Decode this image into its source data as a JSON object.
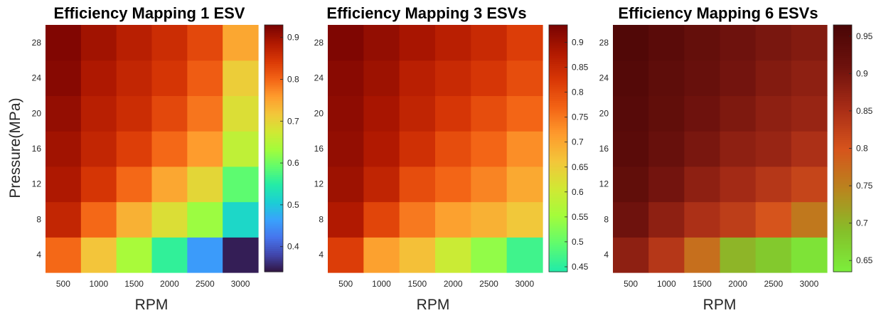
{
  "chart_data": [
    {
      "type": "heatmap",
      "title": "Efficiency Mapping 1 ESV",
      "xlabel": "RPM",
      "ylabel": "Pressure(MPa)",
      "x": [
        500,
        1000,
        1500,
        2000,
        2500,
        3000
      ],
      "y_ticks": [
        4,
        8,
        12,
        16,
        20,
        24,
        28
      ],
      "rows": [
        "4",
        "8",
        "12",
        "16",
        "20",
        "24",
        "28"
      ],
      "values": [
        [
          0.8,
          0.72,
          0.64,
          0.56,
          0.46,
          0.35
        ],
        [
          0.87,
          0.8,
          0.74,
          0.69,
          0.63,
          0.52
        ],
        [
          0.89,
          0.85,
          0.8,
          0.75,
          0.7,
          0.59
        ],
        [
          0.9,
          0.87,
          0.84,
          0.8,
          0.76,
          0.66
        ],
        [
          0.91,
          0.88,
          0.86,
          0.83,
          0.79,
          0.69
        ],
        [
          0.92,
          0.89,
          0.87,
          0.85,
          0.81,
          0.71
        ],
        [
          0.925,
          0.9,
          0.88,
          0.86,
          0.83,
          0.75
        ]
      ],
      "colorbar": {
        "min": 0.34,
        "max": 0.93,
        "ticks": [
          0.4,
          0.5,
          0.6,
          0.7,
          0.8,
          0.9
        ],
        "tick_labels": [
          "0.4",
          "0.5",
          "0.6",
          "0.7",
          "0.8",
          "0.9"
        ]
      }
    },
    {
      "type": "heatmap",
      "title": "Efficiency Mapping 3 ESVs",
      "xlabel": "RPM",
      "ylabel": "",
      "x": [
        500,
        1000,
        1500,
        2000,
        2500,
        3000
      ],
      "y_ticks": [
        4,
        8,
        12,
        16,
        20,
        24,
        28
      ],
      "rows": [
        "4",
        "8",
        "12",
        "16",
        "20",
        "24",
        "28"
      ],
      "values": [
        [
          0.82,
          0.71,
          0.67,
          0.6,
          0.54,
          0.47
        ],
        [
          0.88,
          0.81,
          0.75,
          0.71,
          0.69,
          0.66
        ],
        [
          0.9,
          0.86,
          0.8,
          0.77,
          0.74,
          0.7
        ],
        [
          0.91,
          0.88,
          0.84,
          0.8,
          0.77,
          0.73
        ],
        [
          0.915,
          0.89,
          0.86,
          0.83,
          0.8,
          0.77
        ],
        [
          0.92,
          0.9,
          0.87,
          0.85,
          0.83,
          0.8
        ],
        [
          0.93,
          0.91,
          0.89,
          0.87,
          0.85,
          0.82
        ]
      ],
      "colorbar": {
        "min": 0.44,
        "max": 0.935,
        "ticks": [
          0.45,
          0.5,
          0.55,
          0.6,
          0.65,
          0.7,
          0.75,
          0.8,
          0.85,
          0.9
        ],
        "tick_labels": [
          "0.45",
          "0.5",
          "0.55",
          "0.6",
          "0.65",
          "0.7",
          "0.75",
          "0.8",
          "0.85",
          "0.9"
        ]
      }
    },
    {
      "type": "heatmap",
      "title": "Efficiency Mapping 6 ESVs",
      "xlabel": "RPM",
      "ylabel": "",
      "x": [
        500,
        1000,
        1500,
        2000,
        2500,
        3000
      ],
      "y_ticks": [
        4,
        8,
        12,
        16,
        20,
        24,
        28
      ],
      "rows": [
        "4",
        "8",
        "12",
        "16",
        "20",
        "24",
        "28"
      ],
      "values": [
        [
          0.88,
          0.84,
          0.77,
          0.7,
          0.68,
          0.65
        ],
        [
          0.91,
          0.88,
          0.85,
          0.83,
          0.8,
          0.76
        ],
        [
          0.93,
          0.905,
          0.88,
          0.86,
          0.84,
          0.82
        ],
        [
          0.94,
          0.92,
          0.9,
          0.88,
          0.87,
          0.85
        ],
        [
          0.945,
          0.93,
          0.91,
          0.895,
          0.88,
          0.87
        ],
        [
          0.95,
          0.935,
          0.92,
          0.905,
          0.89,
          0.88
        ],
        [
          0.955,
          0.94,
          0.925,
          0.91,
          0.9,
          0.89
        ]
      ],
      "colorbar": {
        "min": 0.635,
        "max": 0.965,
        "ticks": [
          0.65,
          0.7,
          0.75,
          0.8,
          0.85,
          0.9,
          0.95
        ],
        "tick_labels": [
          "0.65",
          "0.7",
          "0.75",
          "0.8",
          "0.85",
          "0.9",
          "0.95"
        ]
      }
    }
  ],
  "colormap": {
    "name": "turbo",
    "stops": [
      "#30123b",
      "#4145ab",
      "#4675ed",
      "#39a2fc",
      "#1bcfd4",
      "#24eca6",
      "#61fc6c",
      "#a4fc3b",
      "#d1e834",
      "#f3c63a",
      "#fe9b2d",
      "#f36315",
      "#d93806",
      "#b11901",
      "#7a0402"
    ]
  },
  "colorbar_scale": "partial-turbo: color = turbo(0.35 + 0.65 * normalized value)",
  "colormap_6": {
    "stops": [
      "#7cf03c",
      "#85c02a",
      "#b8861e",
      "#d6541c",
      "#a82c16",
      "#6e120d",
      "#4a0606"
    ]
  }
}
